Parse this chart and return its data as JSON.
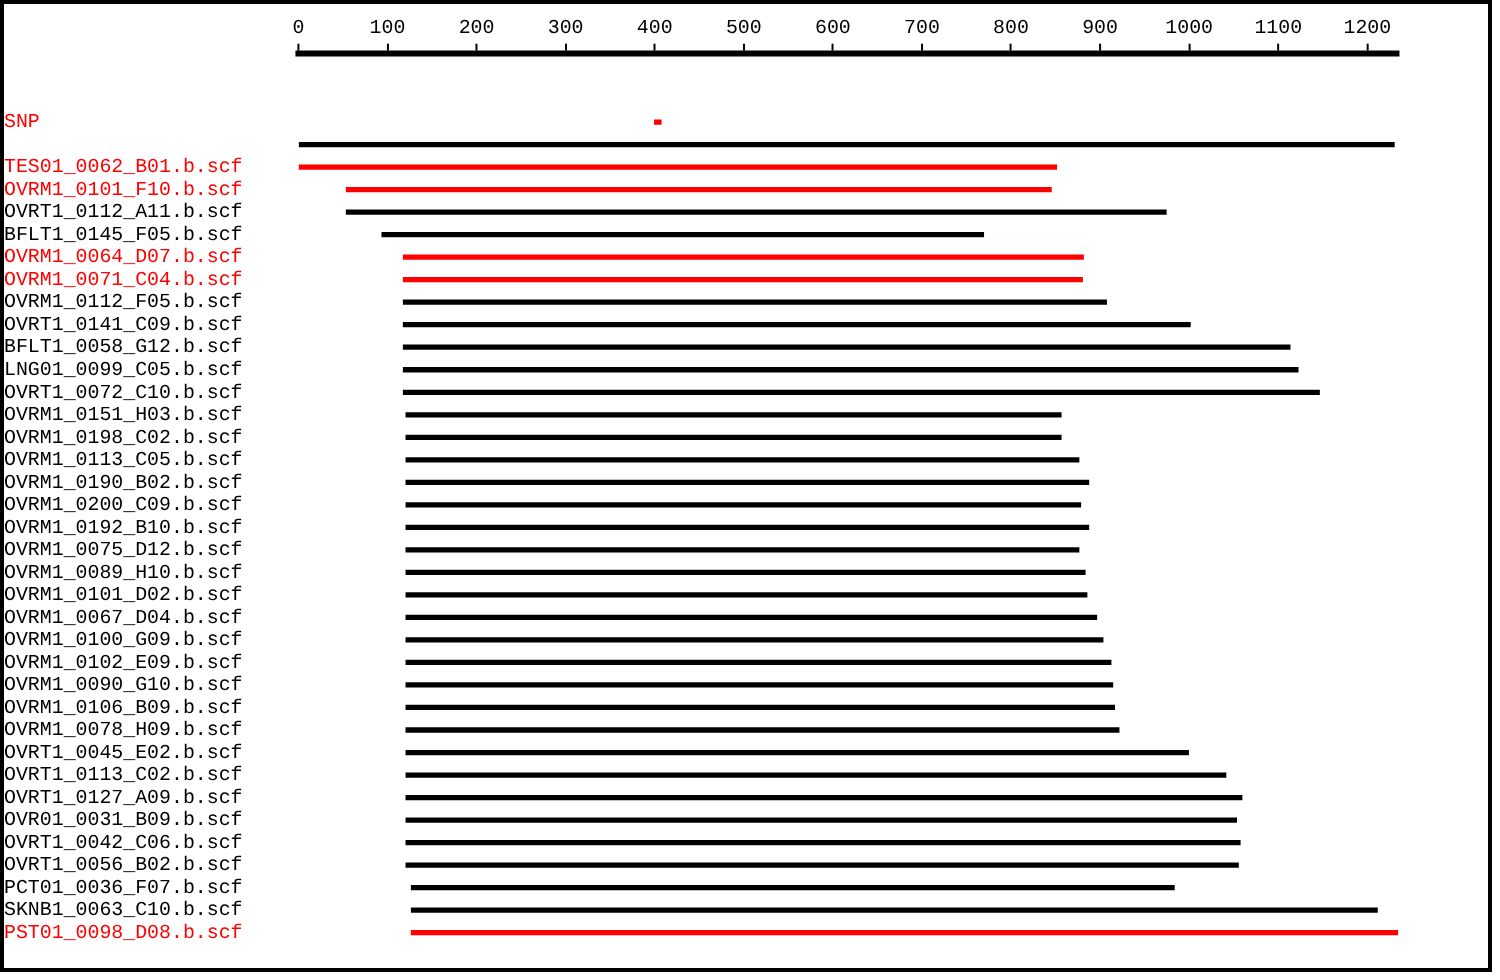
{
  "chart_data": {
    "type": "bar",
    "orientation": "horizontal",
    "categories": [
      "SNP",
      null,
      "TES01_0062_B01.b.scf",
      "OVRM1_0101_F10.b.scf",
      "OVRT1_0112_A11.b.scf",
      "BFLT1_0145_F05.b.scf",
      "OVRM1_0064_D07.b.scf",
      "OVRM1_0071_C04.b.scf",
      "OVRM1_0112_F05.b.scf",
      "OVRT1_0141_C09.b.scf",
      "BFLT1_0058_G12.b.scf",
      "LNG01_0099_C05.b.scf",
      "OVRT1_0072_C10.b.scf",
      "OVRM1_0151_H03.b.scf",
      "OVRM1_0198_C02.b.scf",
      "OVRM1_0113_C05.b.scf",
      "OVRM1_0190_B02.b.scf",
      "OVRM1_0200_C09.b.scf",
      "OVRM1_0192_B10.b.scf",
      "OVRM1_0075_D12.b.scf",
      "OVRM1_0089_H10.b.scf",
      "OVRM1_0101_D02.b.scf",
      "OVRM1_0067_D04.b.scf",
      "OVRM1_0100_G09.b.scf",
      "OVRM1_0102_E09.b.scf",
      "OVRM1_0090_G10.b.scf",
      "OVRM1_0106_B09.b.scf",
      "OVRM1_0078_H09.b.scf",
      "OVRT1_0045_E02.b.scf",
      "OVRT1_0113_C02.b.scf",
      "OVRT1_0127_A09.b.scf",
      "OVR01_0031_B09.b.scf",
      "OVRT1_0042_C06.b.scf",
      "OVRT1_0056_B02.b.scf",
      "PCT01_0036_F07.b.scf",
      "SKNB1_0063_C10.b.scf",
      "PST01_0098_D08.b.scf"
    ],
    "base": [
      400,
      0,
      0,
      54,
      54,
      94,
      118,
      118,
      118,
      118,
      118,
      118,
      118,
      121,
      121,
      121,
      121,
      121,
      121,
      121,
      121,
      121,
      121,
      121,
      121,
      121,
      121,
      121,
      121,
      121,
      121,
      121,
      121,
      121,
      127,
      127,
      127
    ],
    "values": [
      7,
      1230,
      851,
      791,
      920,
      675,
      763,
      762,
      789,
      883,
      995,
      1004,
      1028,
      735,
      735,
      755,
      766,
      757,
      766,
      755,
      762,
      764,
      775,
      782,
      791,
      793,
      795,
      800,
      878,
      920,
      938,
      932,
      936,
      934,
      856,
      1084,
      1107
    ],
    "colors": [
      "#ff0000",
      "#000000",
      "#ff0000",
      "#ff0000",
      "#000000",
      "#000000",
      "#ff0000",
      "#ff0000",
      "#000000",
      "#000000",
      "#000000",
      "#000000",
      "#000000",
      "#000000",
      "#000000",
      "#000000",
      "#000000",
      "#000000",
      "#000000",
      "#000000",
      "#000000",
      "#000000",
      "#000000",
      "#000000",
      "#000000",
      "#000000",
      "#000000",
      "#000000",
      "#000000",
      "#000000",
      "#000000",
      "#000000",
      "#000000",
      "#000000",
      "#000000",
      "#000000",
      "#ff0000"
    ],
    "xlim": [
      0,
      1235
    ],
    "xticks": [
      0,
      100,
      200,
      300,
      400,
      500,
      600,
      700,
      800,
      900,
      1000,
      1100,
      1200
    ],
    "grid": false,
    "legend": false
  }
}
